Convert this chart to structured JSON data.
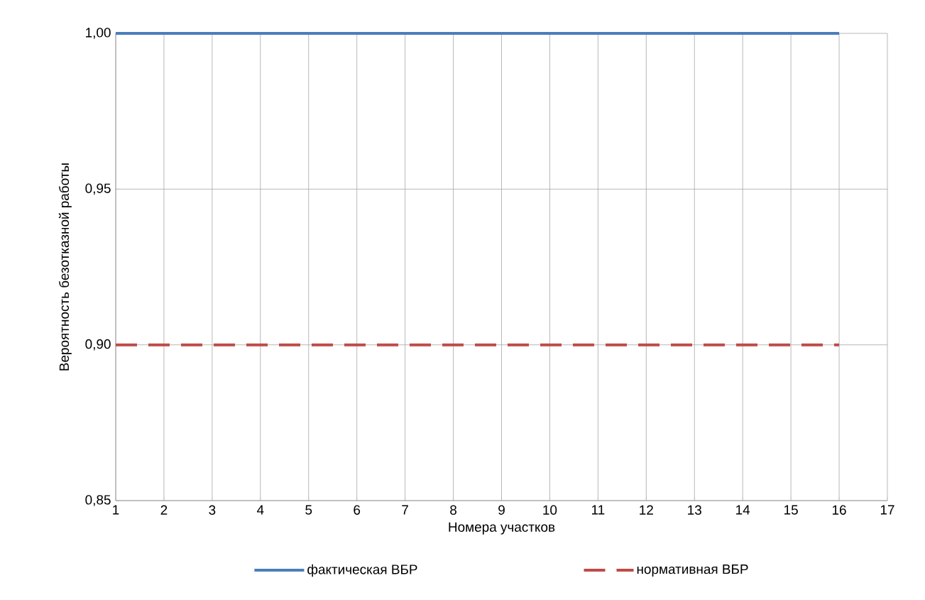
{
  "chart_data": {
    "type": "line",
    "ylabel": "Вероятность безотказной работы",
    "xlabel": "Номера участков",
    "x": [
      1,
      16
    ],
    "series": [
      {
        "name": "фактическая ВБР",
        "color": "#4a7ebb",
        "line_style": "solid",
        "values": [
          1,
          1
        ]
      },
      {
        "name": "нормативная ВБР",
        "color": "#be4b48",
        "line_style": "dashed",
        "values": [
          0.9,
          0.9
        ]
      }
    ],
    "xlim": [
      1,
      17
    ],
    "xticks": [
      1,
      2,
      3,
      4,
      5,
      6,
      7,
      8,
      9,
      10,
      11,
      12,
      13,
      14,
      15,
      16,
      17
    ],
    "ylim": [
      0.85,
      1.0
    ],
    "yticks": [
      {
        "value": 0.85,
        "label": "0,85"
      },
      {
        "value": 0.9,
        "label": "0,90"
      },
      {
        "value": 0.95,
        "label": "0,95"
      },
      {
        "value": 1.0,
        "label": "1,00"
      }
    ],
    "grid": true,
    "legend": "bottom"
  }
}
